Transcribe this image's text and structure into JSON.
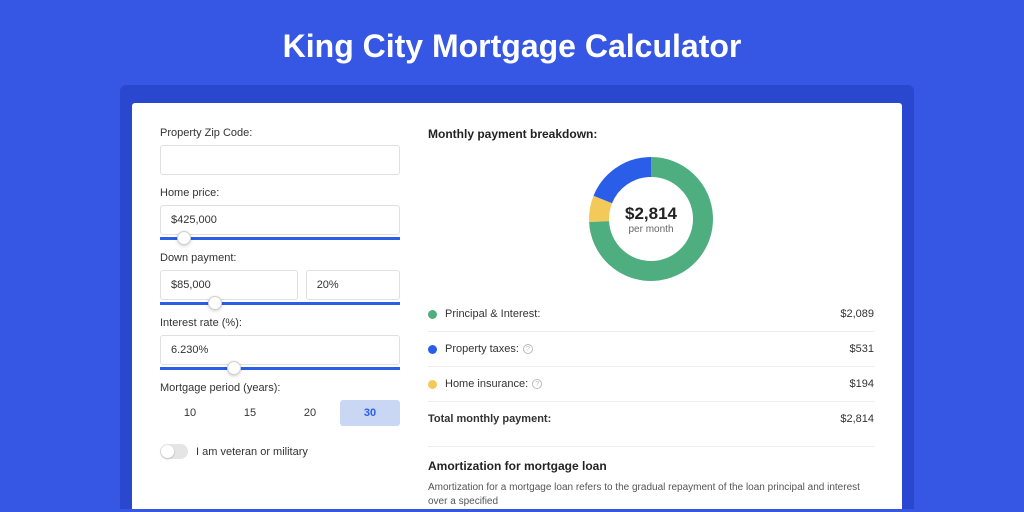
{
  "title": "King City Mortgage Calculator",
  "colors": {
    "page_bg": "#3657e3",
    "card_shadow": "#2a47cf",
    "accent": "#2a5ee8",
    "period_active_bg": "#c9d7f5"
  },
  "form": {
    "zip": {
      "label": "Property Zip Code:",
      "value": ""
    },
    "home_price": {
      "label": "Home price:",
      "value": "$425,000",
      "slider_pct": 7
    },
    "down_payment": {
      "label": "Down payment:",
      "value": "$85,000",
      "pct": "20%",
      "slider_pct": 20
    },
    "interest": {
      "label": "Interest rate (%):",
      "value": "6.230%",
      "slider_pct": 28
    },
    "period": {
      "label": "Mortgage period (years):",
      "options": [
        "10",
        "15",
        "20",
        "30"
      ],
      "active": "30"
    },
    "veteran": {
      "label": "I am veteran or military",
      "on": false
    }
  },
  "breakdown": {
    "title": "Monthly payment breakdown:",
    "donut": {
      "amount": "$2,814",
      "sub": "per month",
      "segments": [
        {
          "color": "#4fae80",
          "pct": 74.2
        },
        {
          "color": "#2a5ee8",
          "pct": 18.9
        },
        {
          "color": "#f3c95a",
          "pct": 6.9
        }
      ],
      "ring_width": 20,
      "size": 128
    },
    "items": [
      {
        "dot": "#4fae80",
        "label": "Principal & Interest:",
        "info": false,
        "value": "$2,089"
      },
      {
        "dot": "#2a5ee8",
        "label": "Property taxes:",
        "info": true,
        "value": "$531"
      },
      {
        "dot": "#f3c95a",
        "label": "Home insurance:",
        "info": true,
        "value": "$194"
      }
    ],
    "total": {
      "label": "Total monthly payment:",
      "value": "$2,814"
    }
  },
  "amortization": {
    "title": "Amortization for mortgage loan",
    "text": "Amortization for a mortgage loan refers to the gradual repayment of the loan principal and interest over a specified"
  }
}
